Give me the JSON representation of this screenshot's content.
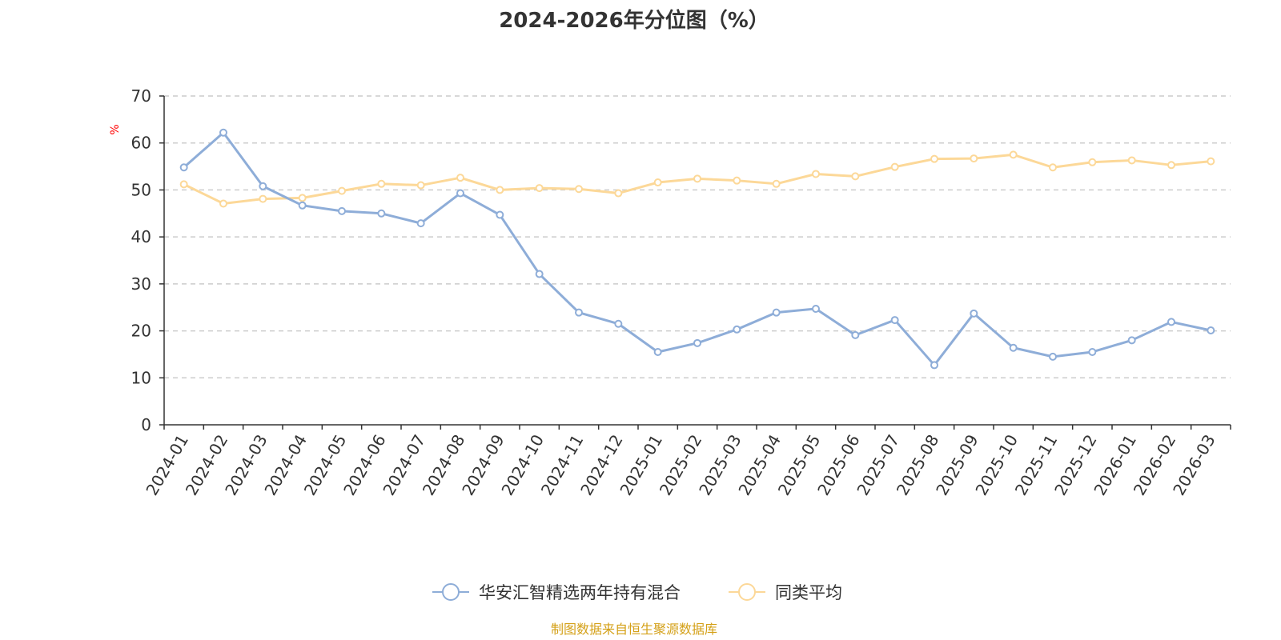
{
  "chart_data": {
    "type": "line",
    "title": "2024-2026年分位图（%）",
    "ylabel": "%",
    "xlabel": "",
    "ylim": [
      0,
      70
    ],
    "yticks": [
      0,
      10,
      20,
      30,
      40,
      50,
      60,
      70
    ],
    "grid": true,
    "legend_position": "bottom",
    "categories": [
      "2024-01",
      "2024-02",
      "2024-03",
      "2024-04",
      "2024-05",
      "2024-06",
      "2024-07",
      "2024-08",
      "2024-09",
      "2024-10",
      "2024-11",
      "2024-12",
      "2025-01",
      "2025-02",
      "2025-03",
      "2025-04",
      "2025-05",
      "2025-06",
      "2025-07",
      "2025-08",
      "2025-09",
      "2025-10",
      "2025-11",
      "2025-12",
      "2026-01",
      "2026-02",
      "2026-03"
    ],
    "series": [
      {
        "name": "华安汇智精选两年持有混合",
        "color": "#8eadd8",
        "values": [
          54.8,
          62.2,
          50.8,
          46.7,
          45.5,
          45.0,
          42.9,
          49.3,
          44.7,
          32.1,
          23.9,
          21.5,
          15.5,
          17.4,
          20.3,
          23.9,
          24.7,
          19.1,
          22.3,
          12.7,
          23.7,
          16.4,
          14.5,
          15.5,
          18.0,
          21.9,
          20.1
        ]
      },
      {
        "name": "同类平均",
        "color": "#fcd898",
        "values": [
          51.2,
          47.1,
          48.1,
          48.3,
          49.8,
          51.3,
          51.0,
          52.6,
          50.0,
          50.4,
          50.2,
          49.3,
          51.6,
          52.4,
          52.0,
          51.3,
          53.4,
          52.9,
          54.9,
          56.6,
          56.7,
          57.5,
          54.8,
          55.9,
          56.3,
          55.3,
          56.1
        ]
      }
    ]
  },
  "source": {
    "text": "制图数据来自恒生聚源数据库",
    "color": "#d4a017"
  },
  "axis_color": "#333333",
  "grid_color": "#cccccc",
  "unit_color": "#ff0000"
}
